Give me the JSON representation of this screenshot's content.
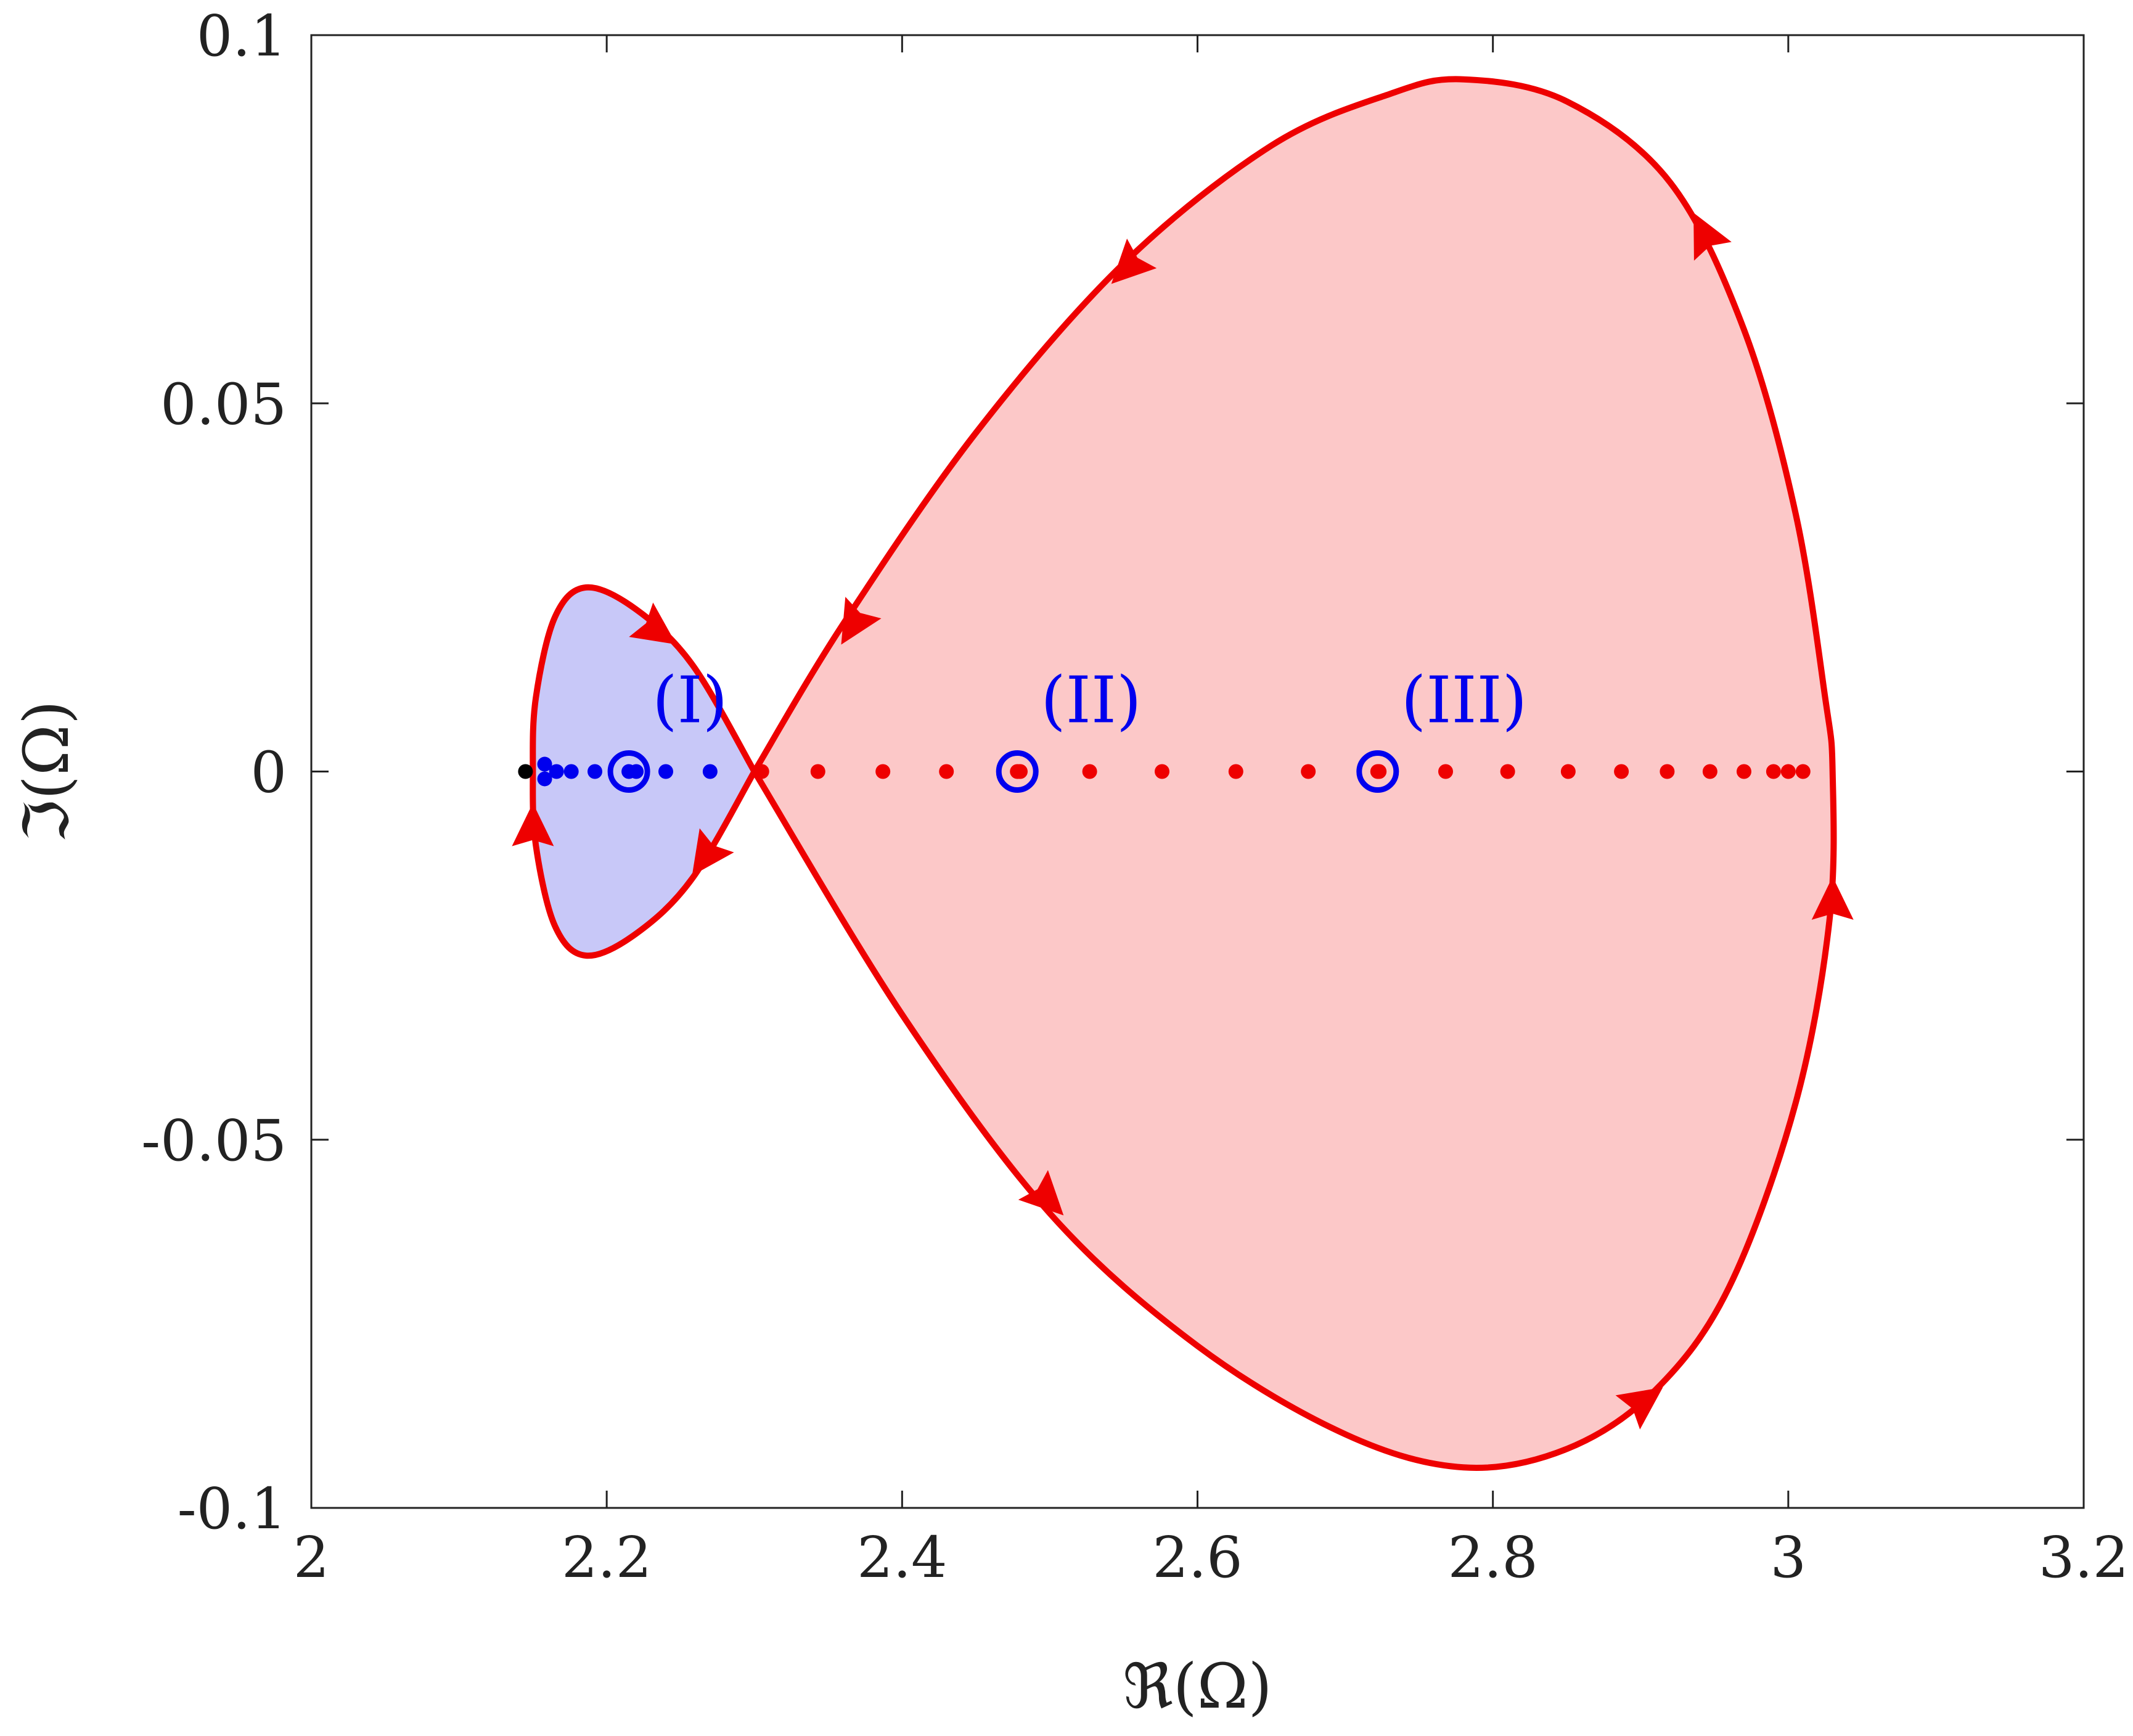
{
  "chart_data": {
    "type": "scatter",
    "xlabel": "ℜ(Ω)",
    "ylabel": "ℑ(Ω)",
    "xlim": [
      2,
      3.2
    ],
    "ylim": [
      -0.1,
      0.1
    ],
    "xticks": [
      "2",
      "2.2",
      "2.4",
      "2.6",
      "2.8",
      "3",
      "3.2"
    ],
    "yticks": [
      "0.1",
      "0.05",
      "0",
      "-0.05",
      "-0.1"
    ],
    "grid": false,
    "colors": {
      "blue": "#0000ee",
      "red": "#ee0000",
      "black": "#000000",
      "blue_fill": "#c8c8f8",
      "red_fill": "#fcc8c8"
    },
    "contours": [
      {
        "color": "red",
        "fill": "blue_fill",
        "points": [
          [
            2.3,
            0.0
          ],
          [
            2.258,
            0.0145
          ],
          [
            2.22,
            0.022
          ],
          [
            2.186,
            0.025
          ],
          [
            2.165,
            0.021
          ],
          [
            2.152,
            0.01
          ],
          [
            2.15,
            0.0
          ],
          [
            2.152,
            -0.01
          ],
          [
            2.165,
            -0.021
          ],
          [
            2.186,
            -0.025
          ],
          [
            2.22,
            -0.022
          ],
          [
            2.258,
            -0.0145
          ],
          [
            2.3,
            0.0
          ]
        ]
      },
      {
        "color": "red",
        "fill": "red_fill",
        "points": [
          [
            2.3,
            0.0
          ],
          [
            2.36,
            0.02
          ],
          [
            2.45,
            0.046
          ],
          [
            2.55,
            0.069
          ],
          [
            2.65,
            0.085
          ],
          [
            2.73,
            0.092
          ],
          [
            2.78,
            0.094
          ],
          [
            2.85,
            0.091
          ],
          [
            2.92,
            0.08
          ],
          [
            2.97,
            0.06
          ],
          [
            3.005,
            0.035
          ],
          [
            3.025,
            0.01
          ],
          [
            3.03,
            0.0
          ],
          [
            3.028,
            -0.02
          ],
          [
            3.005,
            -0.045
          ],
          [
            2.96,
            -0.07
          ],
          [
            2.91,
            -0.084
          ],
          [
            2.85,
            -0.092
          ],
          [
            2.78,
            -0.0945
          ],
          [
            2.7,
            -0.09
          ],
          [
            2.6,
            -0.078
          ],
          [
            2.5,
            -0.06
          ],
          [
            2.4,
            -0.033
          ],
          [
            2.3,
            0.0
          ]
        ]
      }
    ],
    "arrows": [
      {
        "x": 2.234,
        "y": 0.0191,
        "dx": 1,
        "dy": -0.7
      },
      {
        "x": 2.15,
        "y": -0.0075,
        "dx": 0,
        "dy": 1
      },
      {
        "x": 2.267,
        "y": -0.0115,
        "dx": -0.7,
        "dy": -1
      },
      {
        "x": 2.367,
        "y": 0.02,
        "dx": -0.6,
        "dy": -1
      },
      {
        "x": 2.553,
        "y": 0.0685,
        "dx": -0.55,
        "dy": -0.55
      },
      {
        "x": 2.943,
        "y": 0.073,
        "dx": -0.5,
        "dy": 1
      },
      {
        "x": 3.03,
        "y": -0.0175,
        "dx": 0,
        "dy": 1
      },
      {
        "x": 2.902,
        "y": -0.0855,
        "dx": 0.7,
        "dy": 0.5
      },
      {
        "x": 2.498,
        "y": -0.058,
        "dx": 0.6,
        "dy": -0.6
      }
    ],
    "series": [
      {
        "color": "black",
        "points": [
          [
            2.145,
            0.0
          ]
        ]
      },
      {
        "color": "blue",
        "points": [
          [
            2.158,
            0.001
          ],
          [
            2.158,
            -0.001
          ],
          [
            2.166,
            0.0
          ],
          [
            2.176,
            0.0
          ],
          [
            2.192,
            0.0
          ],
          [
            2.22,
            0.0
          ],
          [
            2.24,
            0.0
          ],
          [
            2.27,
            0.0
          ]
        ]
      },
      {
        "color": "red",
        "points": [
          [
            2.305,
            0.0
          ],
          [
            2.343,
            0.0
          ],
          [
            2.387,
            0.0
          ],
          [
            2.43,
            0.0
          ],
          [
            2.48,
            0.0
          ],
          [
            2.527,
            0.0
          ],
          [
            2.576,
            0.0
          ],
          [
            2.626,
            0.0
          ],
          [
            2.675,
            0.0
          ],
          [
            2.723,
            0.0
          ],
          [
            2.768,
            0.0
          ],
          [
            2.81,
            0.0
          ],
          [
            2.851,
            0.0
          ],
          [
            2.887,
            0.0
          ],
          [
            2.918,
            0.0
          ],
          [
            2.947,
            0.0
          ],
          [
            2.97,
            0.0
          ],
          [
            2.99,
            0.0
          ],
          [
            3.0,
            0.0
          ],
          [
            3.01,
            0.0
          ]
        ]
      }
    ],
    "markers": [
      {
        "label": "(I)",
        "x": 2.215,
        "y": 0.0,
        "dot_color": "blue"
      },
      {
        "label": "(II)",
        "x": 2.478,
        "y": 0.0,
        "dot_color": "red"
      },
      {
        "label": "(III)",
        "x": 2.722,
        "y": 0.0,
        "dot_color": "red"
      }
    ]
  }
}
